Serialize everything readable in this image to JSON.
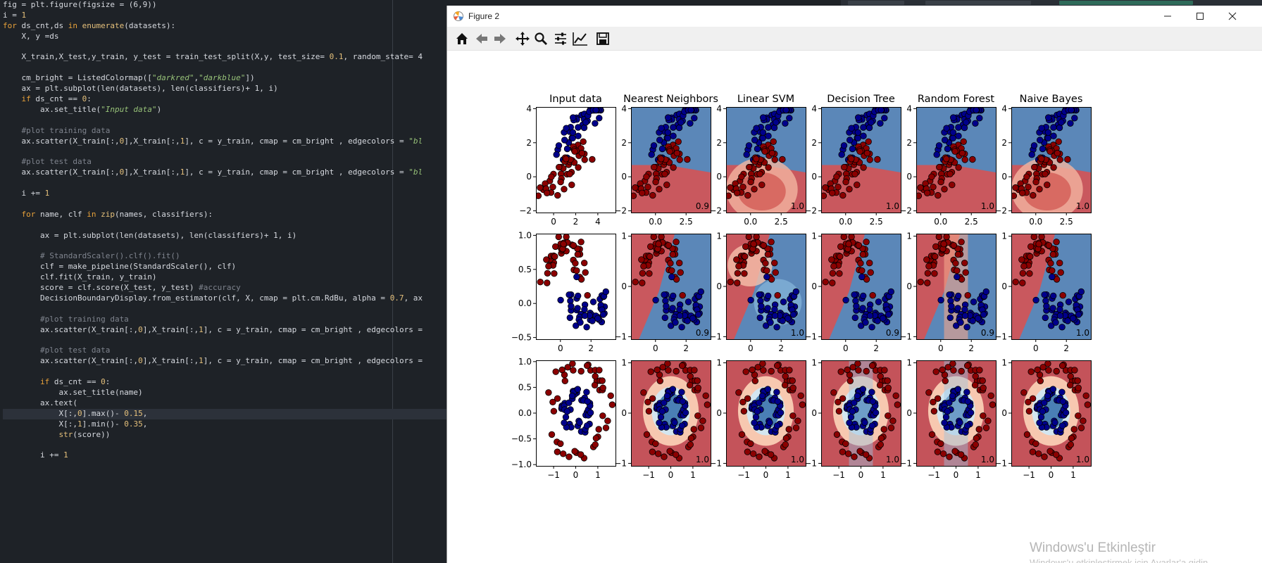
{
  "editor": {
    "lines": [
      [
        [
          "n",
          "fig = plt.figure(figsize = (6,9))"
        ]
      ],
      [
        [
          "n",
          "i = "
        ],
        [
          "num",
          "1"
        ]
      ],
      [
        [
          "k",
          "for"
        ],
        [
          "n",
          " ds_cnt,ds "
        ],
        [
          "k",
          "in"
        ],
        [
          "f",
          " enumerate"
        ],
        [
          "n",
          "(datasets):"
        ]
      ],
      [
        [
          "n",
          "    X, y =ds"
        ]
      ],
      [
        [
          "n",
          ""
        ]
      ],
      [
        [
          "n",
          "    X_train,X_test,y_train, y_test = train_test_split(X,y, test_size= "
        ],
        [
          "num",
          "0.1"
        ],
        [
          "n",
          ", random_state= 4"
        ]
      ],
      [
        [
          "n",
          ""
        ]
      ],
      [
        [
          "n",
          "    cm_bright = ListedColormap(["
        ],
        [
          "s",
          "\"darkred\""
        ],
        [
          "n",
          ","
        ],
        [
          "s",
          "\"darkblue\""
        ],
        [
          "n",
          "])"
        ]
      ],
      [
        [
          "n",
          "    ax = plt.subplot(len(datasets), len(classifiers)+ 1, i)"
        ]
      ],
      [
        [
          "n",
          "    "
        ],
        [
          "k",
          "if"
        ],
        [
          "n",
          " ds_cnt == "
        ],
        [
          "num",
          "0"
        ],
        [
          "n",
          ":"
        ]
      ],
      [
        [
          "n",
          "        ax.set_title("
        ],
        [
          "s",
          "\"Input data\""
        ],
        [
          "n",
          ")"
        ]
      ],
      [
        [
          "n",
          ""
        ]
      ],
      [
        [
          "c",
          "    #plot training data"
        ]
      ],
      [
        [
          "n",
          "    ax.scatter(X_train[:,"
        ],
        [
          "num",
          "0"
        ],
        [
          "n",
          "],X_train[:,"
        ],
        [
          "num",
          "1"
        ],
        [
          "n",
          "], c = y_train, cmap = cm_bright , edgecolors = "
        ],
        [
          "s",
          "\"bl"
        ]
      ],
      [
        [
          "n",
          ""
        ]
      ],
      [
        [
          "c",
          "    #plot test data"
        ]
      ],
      [
        [
          "n",
          "    ax.scatter(X_train[:,"
        ],
        [
          "num",
          "0"
        ],
        [
          "n",
          "],X_train[:,"
        ],
        [
          "num",
          "1"
        ],
        [
          "n",
          "], c = y_train, cmap = cm_bright , edgecolors = "
        ],
        [
          "s",
          "\"bl"
        ]
      ],
      [
        [
          "n",
          ""
        ]
      ],
      [
        [
          "n",
          "    i += "
        ],
        [
          "num",
          "1"
        ]
      ],
      [
        [
          "n",
          ""
        ]
      ],
      [
        [
          "n",
          "    "
        ],
        [
          "k",
          "for"
        ],
        [
          "n",
          " name, clf "
        ],
        [
          "k",
          "in"
        ],
        [
          "f",
          " zip"
        ],
        [
          "n",
          "(names, classifiers):"
        ]
      ],
      [
        [
          "n",
          ""
        ]
      ],
      [
        [
          "n",
          "        ax = plt.subplot(len(datasets), len(classifiers)+ 1, i)"
        ]
      ],
      [
        [
          "n",
          ""
        ]
      ],
      [
        [
          "c",
          "        # StandardScaler().clf().fit()"
        ]
      ],
      [
        [
          "n",
          "        clf = make_pipeline(StandardScaler(), clf)"
        ]
      ],
      [
        [
          "n",
          "        clf.fit(X_train, y_train)"
        ]
      ],
      [
        [
          "n",
          "        score = clf.score(X_test, y_test) "
        ],
        [
          "c",
          "#accuracy"
        ]
      ],
      [
        [
          "n",
          "        DecisionBoundaryDisplay.from_estimator(clf, X, cmap = plt.cm.RdBu, alpha = "
        ],
        [
          "num",
          "0.7"
        ],
        [
          "n",
          ", ax"
        ]
      ],
      [
        [
          "n",
          ""
        ]
      ],
      [
        [
          "c",
          "        #plot training data"
        ]
      ],
      [
        [
          "n",
          "        ax.scatter(X_train[:,"
        ],
        [
          "num",
          "0"
        ],
        [
          "n",
          "],X_train[:,"
        ],
        [
          "num",
          "1"
        ],
        [
          "n",
          "], c = y_train, cmap = cm_bright , edgecolors ="
        ]
      ],
      [
        [
          "n",
          ""
        ]
      ],
      [
        [
          "c",
          "        #plot test data"
        ]
      ],
      [
        [
          "n",
          "        ax.scatter(X_train[:,"
        ],
        [
          "num",
          "0"
        ],
        [
          "n",
          "],X_train[:,"
        ],
        [
          "num",
          "1"
        ],
        [
          "n",
          "], c = y_train, cmap = cm_bright , edgecolors ="
        ]
      ],
      [
        [
          "n",
          ""
        ]
      ],
      [
        [
          "n",
          "        "
        ],
        [
          "k",
          "if"
        ],
        [
          "n",
          " ds_cnt == "
        ],
        [
          "num",
          "0"
        ],
        [
          "n",
          ":"
        ]
      ],
      [
        [
          "n",
          "            ax.set_title(name)"
        ]
      ],
      [
        [
          "n",
          "        ax.text("
        ]
      ],
      [
        [
          "n",
          "            X[:,"
        ],
        [
          "num",
          "0"
        ],
        [
          "n",
          "].max()- "
        ],
        [
          "num",
          "0.15"
        ],
        [
          "n",
          ","
        ]
      ],
      [
        [
          "n",
          "            X[:,"
        ],
        [
          "num",
          "1"
        ],
        [
          "n",
          "].min()- "
        ],
        [
          "num",
          "0.35"
        ],
        [
          "n",
          ","
        ]
      ],
      [
        [
          "n",
          "            "
        ],
        [
          "f",
          "str"
        ],
        [
          "n",
          "(score))"
        ]
      ],
      [
        [
          "n",
          ""
        ]
      ],
      [
        [
          "n",
          "        i += "
        ],
        [
          "num",
          "1"
        ]
      ]
    ],
    "highlight_line": 39
  },
  "window": {
    "title": "Figure 2",
    "minimize_glyph": "—",
    "maximize_glyph": "☐",
    "close_glyph": "✕"
  },
  "toolbar": {
    "tools": [
      "home-icon",
      "back-arrow-icon",
      "forward-arrow-icon",
      "pan-move-icon",
      "zoom-magnifier-icon",
      "configure-subplots-icon",
      "edit-axis-icon",
      "save-icon"
    ]
  },
  "figure": {
    "titles": [
      "Input data",
      "Nearest Neighbors",
      "Linear SVM",
      "Decision Tree",
      "Random Forest",
      "Naive Bayes"
    ],
    "rows": [
      {
        "dataset": "linear",
        "xticks": [
          "0",
          "2",
          "4"
        ],
        "yticks": [
          "4",
          "2",
          "0",
          "−2"
        ],
        "xticks_clf": [
          "0.0",
          "2.5"
        ],
        "yticks_clf": [
          "4",
          "2",
          "0",
          "−2"
        ],
        "scores": [
          "0.9",
          "1.0",
          "1.0",
          "1.0",
          "1.0"
        ]
      },
      {
        "dataset": "moons",
        "xticks": [
          "0",
          "2"
        ],
        "yticks": [
          "1.0",
          "0.5",
          "0.0",
          "−0.5"
        ],
        "xticks_clf": [
          "0",
          "2"
        ],
        "yticks_clf": [
          "1",
          "0",
          "−1"
        ],
        "scores": [
          "0.9",
          "1.0",
          "0.9",
          "0.9",
          "1.0"
        ]
      },
      {
        "dataset": "circles",
        "xticks": [
          "−1",
          "0",
          "1"
        ],
        "yticks": [
          "1.0",
          "0.5",
          "0.0",
          "−0.5",
          "−1.0"
        ],
        "xticks_clf": [
          "−1",
          "0",
          "1"
        ],
        "yticks_clf": [
          "1",
          "0",
          "−1"
        ],
        "scores": [
          "1.0",
          "1.0",
          "1.0",
          "1.0",
          "1.0"
        ]
      }
    ],
    "colors": {
      "red_class": "#8b0000",
      "blue_class": "#00008b",
      "rdbu_red": "#c8565c",
      "rdbu_blue": "#4a7fb5"
    }
  },
  "watermark": {
    "line1": "Windows'u Etkinleştir",
    "line2": "Windows'u etkinleştirmek için Ayarlar'a gidin"
  }
}
